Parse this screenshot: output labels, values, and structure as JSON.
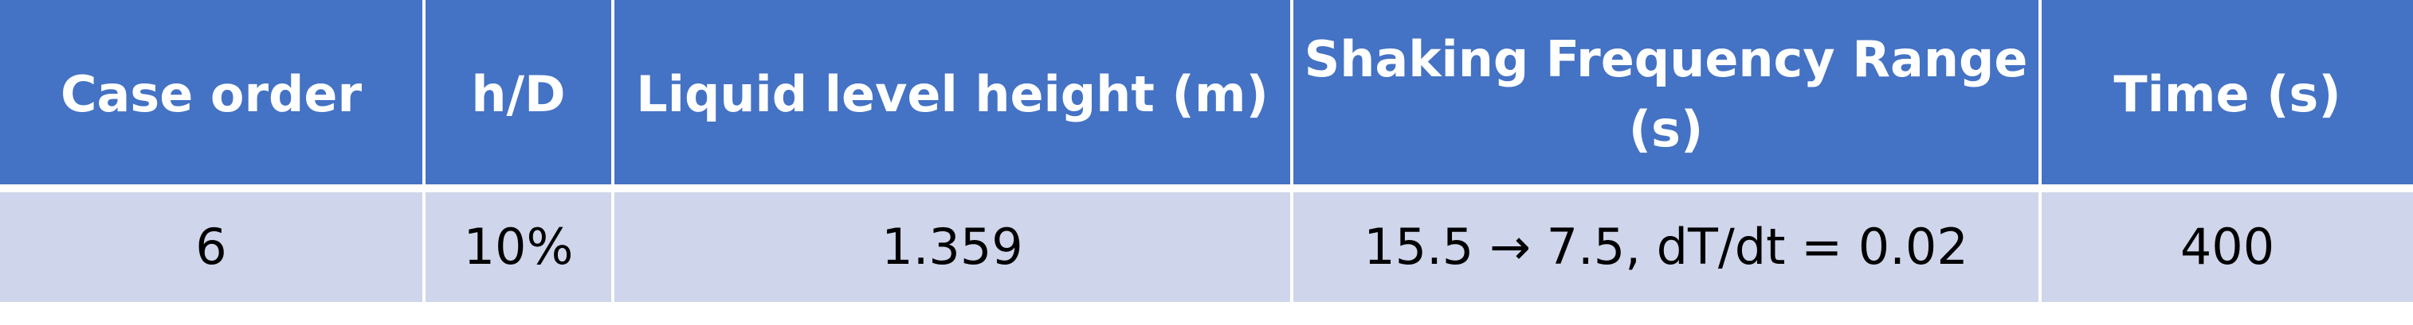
{
  "table": {
    "headers": [
      "Case order",
      "h/D",
      "Liquid level height (m)",
      "Shaking Frequency Range (s)",
      "Time (s)"
    ],
    "rows": [
      [
        "6",
        "10%",
        "1.359",
        "15.5 → 7.5, dT/dt = 0.02",
        "400"
      ]
    ]
  },
  "colors": {
    "header_bg": "#4472c4",
    "header_text": "#ffffff",
    "row_bg": "#cfd5ea",
    "row_text": "#000000"
  }
}
